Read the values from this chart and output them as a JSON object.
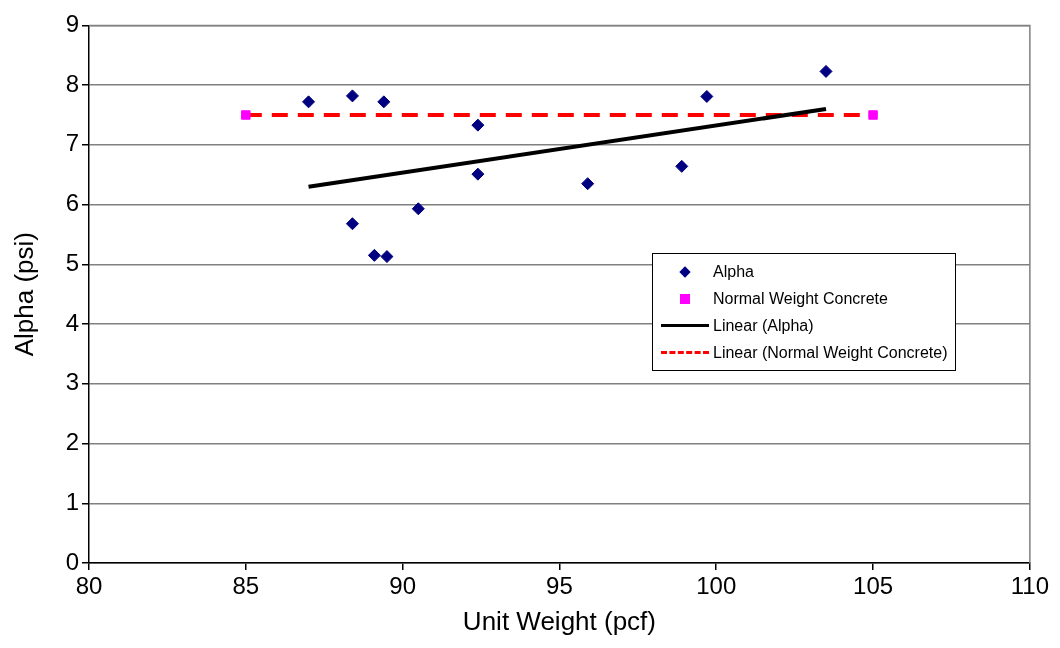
{
  "chart_data": {
    "type": "scatter",
    "xlabel": "Unit Weight (pcf)",
    "ylabel": "Alpha (psi)",
    "xlim": [
      80,
      110
    ],
    "xticks": [
      80,
      85,
      90,
      95,
      100,
      105,
      110
    ],
    "ylim": [
      0,
      9
    ],
    "yticks": [
      0,
      1,
      2,
      3,
      4,
      5,
      6,
      7,
      8,
      9
    ],
    "grid": "y",
    "legend": "right",
    "series": [
      {
        "name": "Alpha",
        "type": "scatter",
        "marker": "diamond",
        "color": "#000080",
        "x": [
          87.0,
          88.4,
          89.4,
          92.4,
          92.4,
          95.9,
          88.4,
          89.1,
          89.5,
          90.5,
          98.9,
          99.7,
          103.5
        ],
        "values": [
          7.72,
          7.82,
          7.72,
          7.33,
          6.51,
          6.35,
          5.68,
          5.15,
          5.13,
          5.93,
          6.64,
          7.81,
          8.23
        ]
      },
      {
        "name": "Normal Weight Concrete",
        "type": "scatter",
        "marker": "square",
        "color": "#ff00ff",
        "x": [
          85,
          105
        ],
        "values": [
          7.5,
          7.5
        ]
      },
      {
        "name": "Linear (Alpha)",
        "type": "line",
        "marker": "none",
        "line_style": "solid",
        "color": "#000000",
        "x": [
          87.0,
          103.5
        ],
        "values": [
          6.3,
          7.6
        ]
      },
      {
        "name": "Linear (Normal Weight Concrete)",
        "type": "line",
        "marker": "none",
        "line_style": "dashed",
        "color": "#ff0000",
        "x": [
          85,
          105
        ],
        "values": [
          7.5,
          7.5
        ]
      }
    ]
  }
}
